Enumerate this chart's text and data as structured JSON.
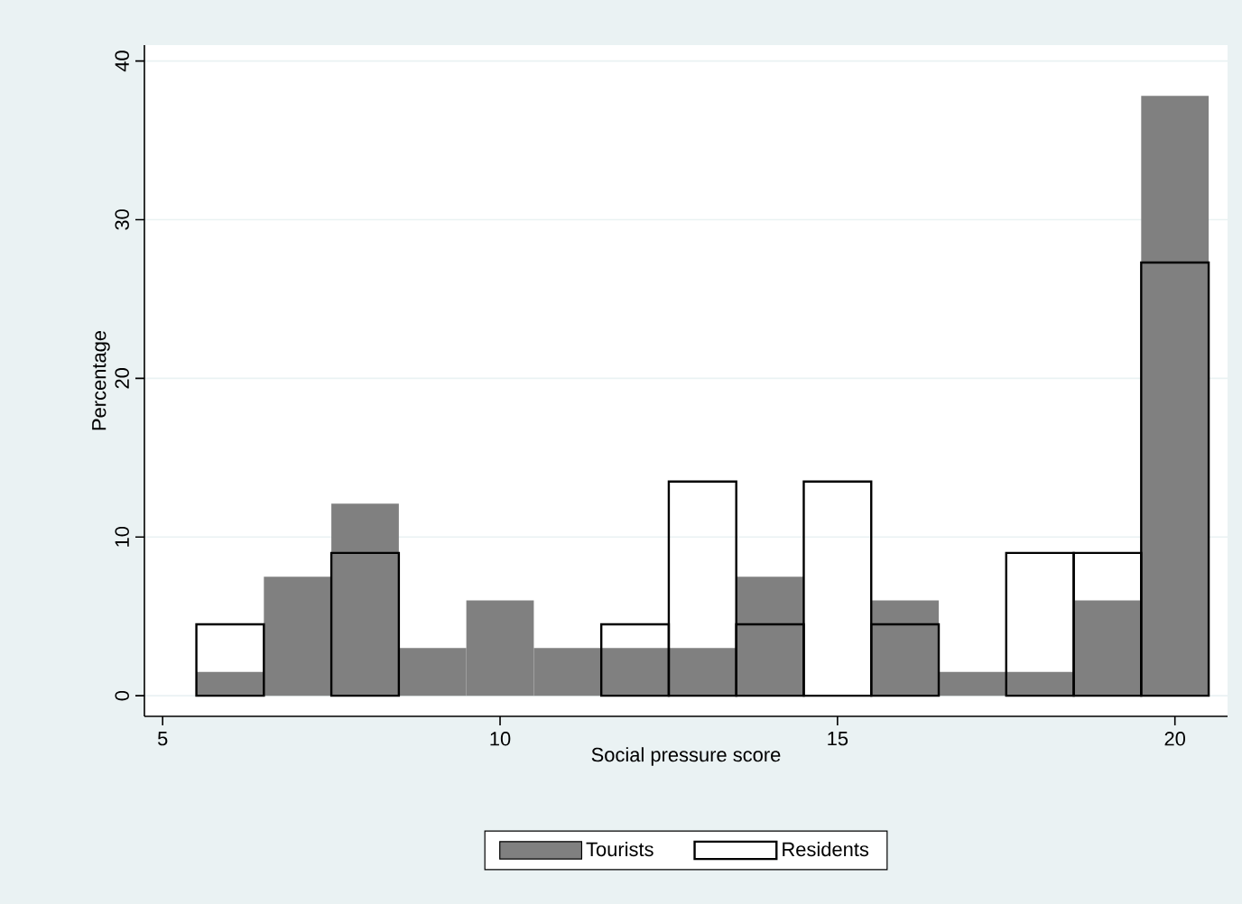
{
  "chart_data": {
    "type": "histogram",
    "xlabel": "Social pressure score",
    "ylabel": "Percentage",
    "bins": [
      5.5,
      6.5,
      7.5,
      8.5,
      9.5,
      10.5,
      11.5,
      12.5,
      13.5,
      14.5,
      15.5,
      16.5,
      17.5,
      18.5,
      19.5,
      20.5
    ],
    "series": [
      {
        "name": "Tourists",
        "color": "#808080",
        "values": [
          1.5,
          7.5,
          12.1,
          3,
          6,
          3,
          3,
          3,
          7.5,
          0,
          6,
          1.5,
          1.5,
          6,
          37.8
        ]
      },
      {
        "name": "Residents",
        "color": "#000000",
        "values": [
          4.5,
          0,
          9,
          0,
          0,
          0,
          4.5,
          13.5,
          4.5,
          13.5,
          4.5,
          0,
          9,
          9,
          27.3
        ]
      }
    ],
    "xlim": [
      4.73,
      20.78
    ],
    "ylim": [
      -1.3,
      41
    ],
    "xticks": [
      5,
      10,
      15,
      20
    ],
    "yticks": [
      0,
      10,
      20,
      30,
      40
    ],
    "grid": "y",
    "legend": "bottom"
  }
}
